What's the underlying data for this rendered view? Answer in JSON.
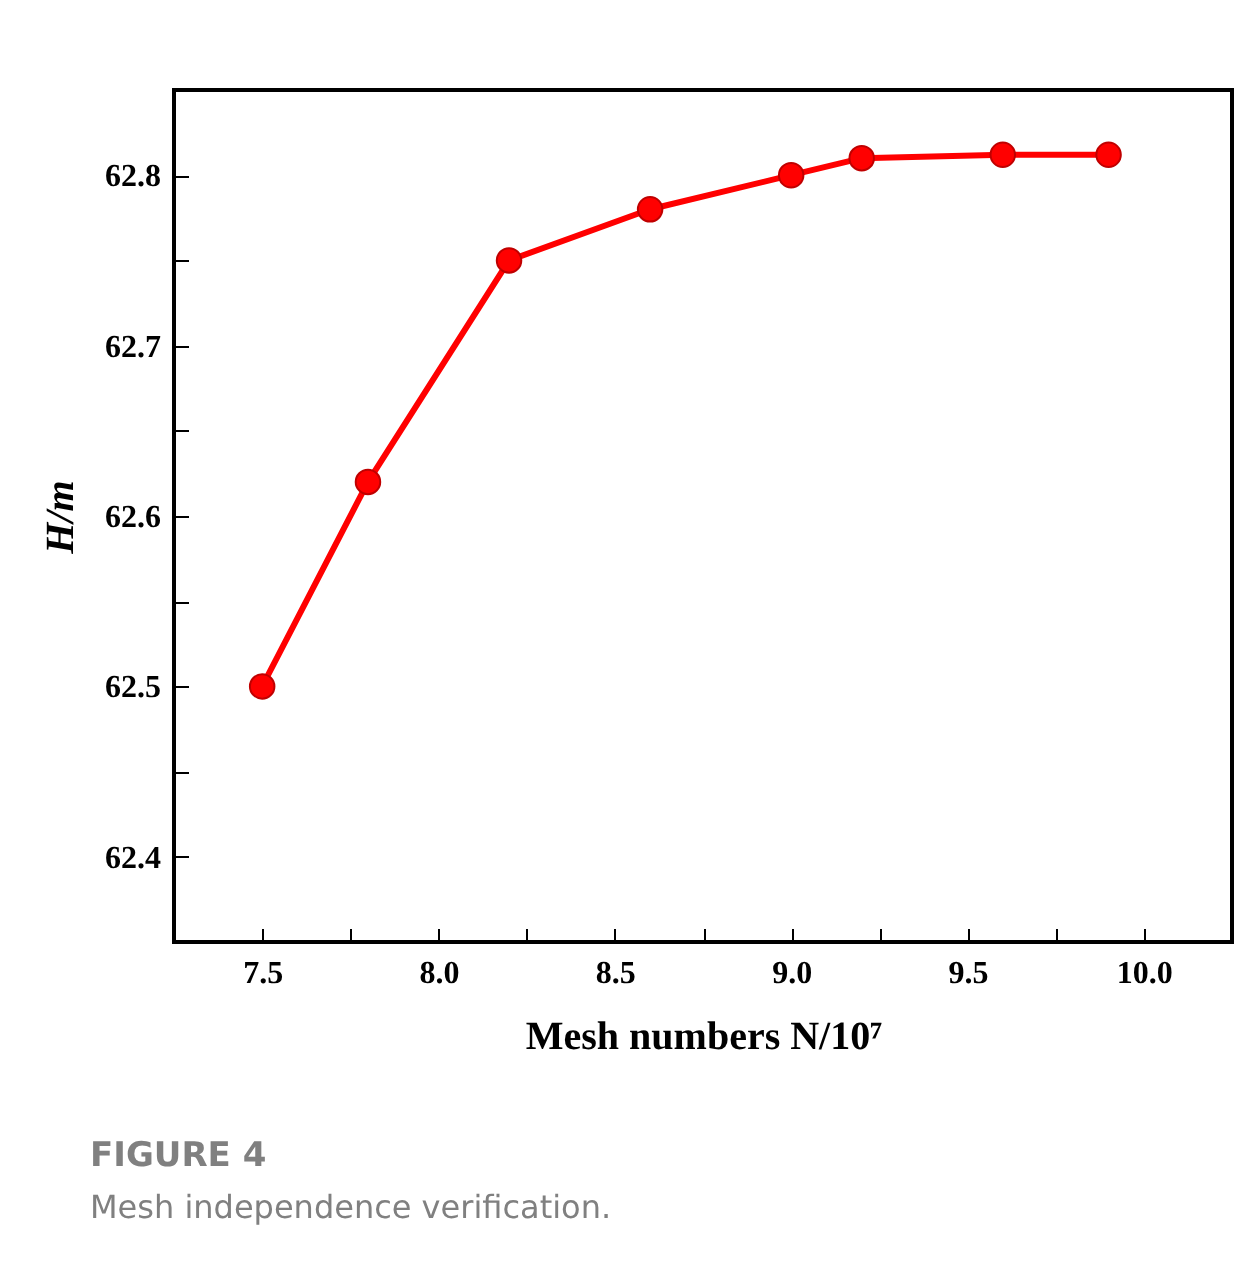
{
  "chart_data": {
    "type": "line",
    "xlabel": "Mesh numbers N/10⁷",
    "ylabel": "H/m",
    "x": [
      7.5,
      7.8,
      8.2,
      8.6,
      9.0,
      9.2,
      9.6,
      9.9
    ],
    "series": [
      {
        "color": "#ff0000",
        "values": [
          62.5,
          62.62,
          62.75,
          62.78,
          62.8,
          62.81,
          62.812,
          62.812
        ]
      }
    ],
    "xlim": [
      7.25,
      10.25
    ],
    "xticks": [
      {
        "value": 7.5,
        "label": "7.5"
      },
      {
        "value": 7.75,
        "label": null
      },
      {
        "value": 8.0,
        "label": "8.0"
      },
      {
        "value": 8.25,
        "label": null
      },
      {
        "value": 8.5,
        "label": "8.5"
      },
      {
        "value": 8.75,
        "label": null
      },
      {
        "value": 9.0,
        "label": "9.0"
      },
      {
        "value": 9.25,
        "label": null
      },
      {
        "value": 9.5,
        "label": "9.5"
      },
      {
        "value": 9.75,
        "label": null
      },
      {
        "value": 10.0,
        "label": "10.0"
      }
    ],
    "ylim": [
      62.35,
      62.85
    ],
    "yticks": [
      {
        "value": 62.4,
        "label": "62.4"
      },
      {
        "value": 62.45,
        "label": null
      },
      {
        "value": 62.5,
        "label": "62.5"
      },
      {
        "value": 62.55,
        "label": null
      },
      {
        "value": 62.6,
        "label": "62.6"
      },
      {
        "value": 62.65,
        "label": null
      },
      {
        "value": 62.7,
        "label": "62.7"
      },
      {
        "value": 62.75,
        "label": null
      },
      {
        "value": 62.8,
        "label": "62.8"
      }
    ],
    "marker": "circle",
    "line_style": "solid",
    "annotations": [
      "FIGURE 4",
      "Mesh independence verification."
    ]
  }
}
